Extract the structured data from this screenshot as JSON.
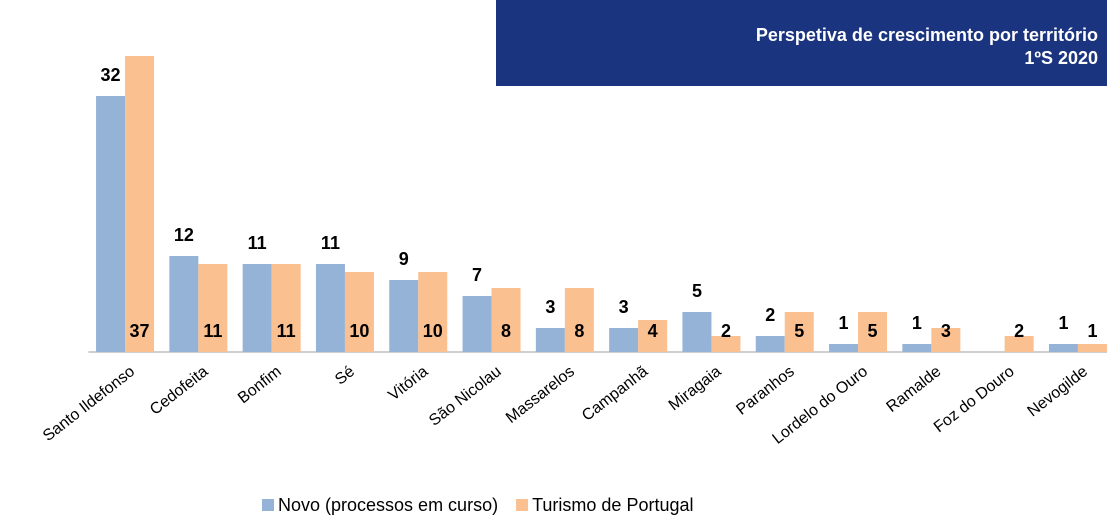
{
  "chart_data": {
    "type": "bar",
    "title": "Perspetiva de crescimento por território",
    "subtitle": "1ºS 2020",
    "categories": [
      "Santo Ildefonso",
      "Cedofeita",
      "Bonfim",
      "Sé",
      "Vitória",
      "São Nicolau",
      "Massarelos",
      "Campanhã",
      "Miragaia",
      "Paranhos",
      "Lordelo do Ouro",
      "Ramalde",
      "Foz do Douro",
      "Nevogilde"
    ],
    "series": [
      {
        "name": "Novo (processos em curso)",
        "color": "#95b3d7",
        "values": [
          32,
          12,
          11,
          11,
          9,
          7,
          3,
          3,
          5,
          2,
          1,
          1,
          null,
          1
        ]
      },
      {
        "name": "Turismo de Portugal",
        "color": "#fac090",
        "values": [
          37,
          11,
          11,
          10,
          10,
          8,
          8,
          4,
          2,
          5,
          5,
          3,
          2,
          1
        ]
      }
    ],
    "ylim": [
      0,
      40
    ],
    "legend": "bottom"
  }
}
